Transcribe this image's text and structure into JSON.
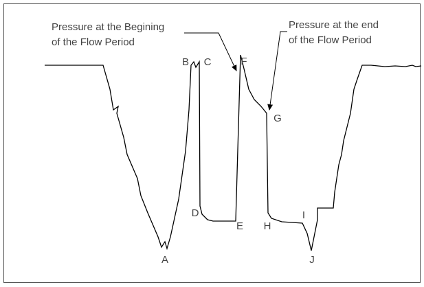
{
  "annotations": [
    {
      "lines": [
        "Pressure at the Begining",
        "of the Flow Period"
      ]
    },
    {
      "lines": [
        "Pressure at the end",
        "of the Flow Period"
      ]
    }
  ],
  "points": [
    "A",
    "B",
    "C",
    "D",
    "E",
    "F",
    "G",
    "H",
    "I",
    "J"
  ]
}
